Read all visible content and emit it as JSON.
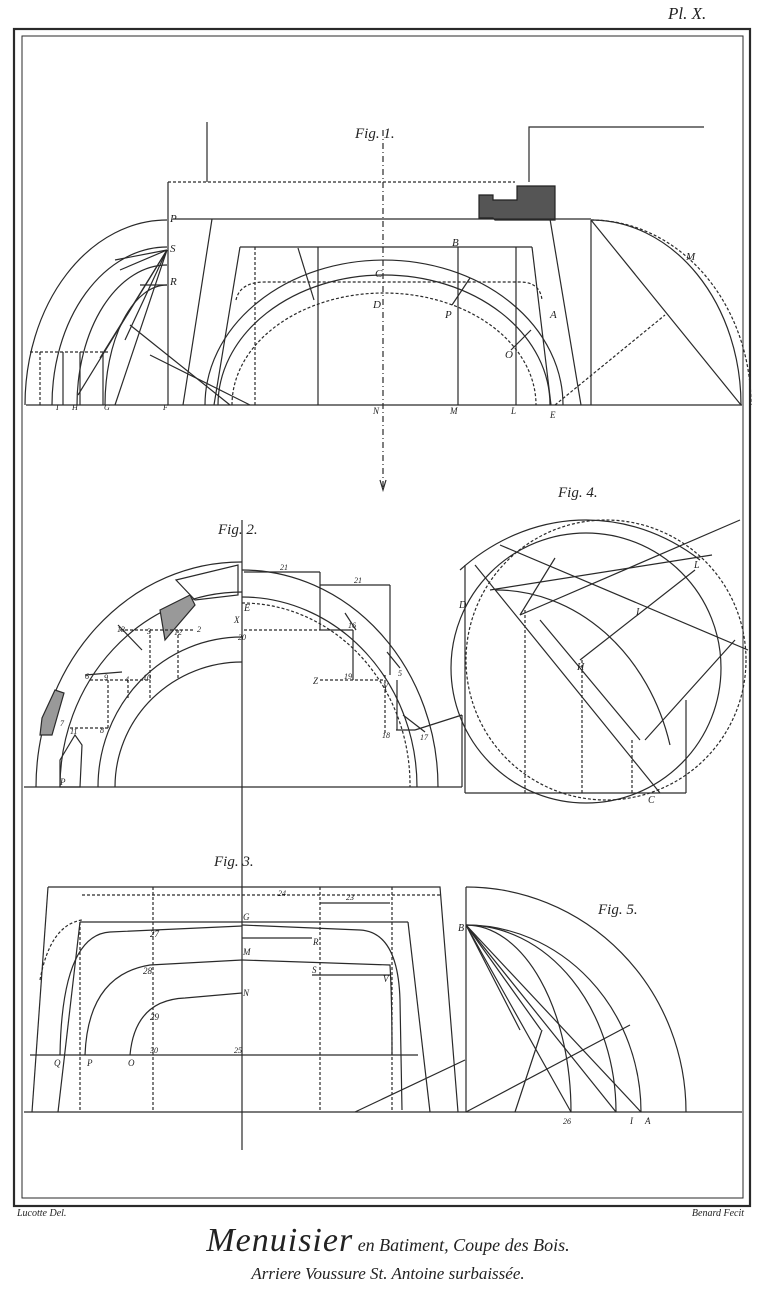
{
  "plate": {
    "number": "Pl. X.",
    "draughtsman": "Lucotte Del.",
    "engraver": "Benard Fecit",
    "title_main": "Menuisier",
    "title_rest": "en Batiment, Coupe des Bois.",
    "subtitle": "Arriere Voussure St. Antoine surbaissée."
  },
  "figures": {
    "fig1": {
      "caption": "Fig. 1.",
      "labels": {
        "P_top": "P",
        "S": "S",
        "R": "R",
        "B": "B",
        "C": "C",
        "D": "D",
        "P_mid": "P",
        "A": "A",
        "O": "O",
        "M_arc": "M",
        "I": "I",
        "H": "H",
        "G": "G",
        "F": "F",
        "N": "N",
        "M_base": "M",
        "L": "L",
        "E": "E"
      }
    },
    "fig2": {
      "caption": "Fig. 2.",
      "labels": {
        "n21a": "21",
        "n21b": "21",
        "E": "E",
        "X": "X",
        "n20": "20",
        "n13": "13",
        "n3": "3",
        "n12": "12",
        "n2": "2",
        "n6": "6",
        "n9": "9",
        "n4": "4",
        "n10": "10",
        "n16": "16",
        "n19": "19",
        "Z": "Z",
        "Y": "Y",
        "n5": "5",
        "n7": "7",
        "n11": "11",
        "n8": "8",
        "n18": "18",
        "n17": "17",
        "P": "P"
      }
    },
    "fig3": {
      "caption": "Fig. 3.",
      "labels": {
        "n24": "24",
        "n23": "23",
        "G": "G",
        "n27": "27",
        "R": "R",
        "M": "M",
        "n28": "28",
        "S": "S",
        "V": "V",
        "N": "N",
        "n29": "29",
        "Q": "Q",
        "P": "P",
        "O": "O",
        "n30": "30",
        "n25": "25"
      }
    },
    "fig4": {
      "caption": "Fig. 4.",
      "labels": {
        "L": "L",
        "D": "D",
        "I": "I",
        "H": "H",
        "C": "C"
      }
    },
    "fig5": {
      "caption": "Fig. 5.",
      "labels": {
        "B": "B",
        "n26": "26",
        "I": "I",
        "A": "A"
      }
    }
  }
}
